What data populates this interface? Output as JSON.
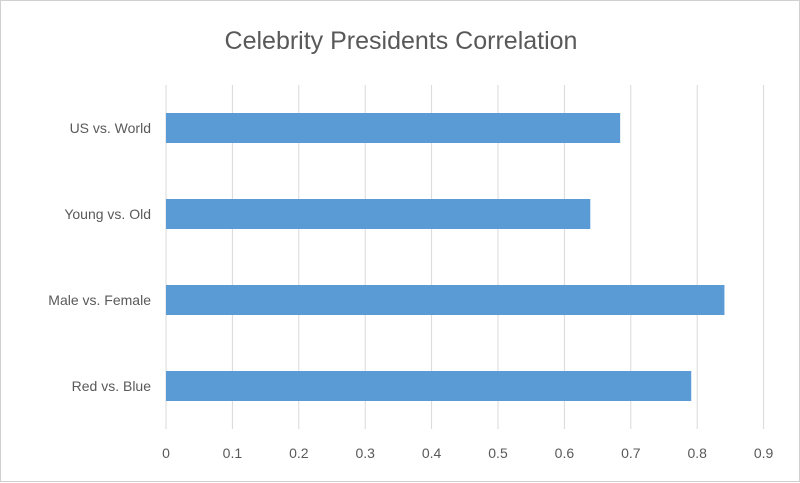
{
  "chart_data": {
    "type": "bar",
    "orientation": "horizontal",
    "title": "Celebrity Presidents Correlation",
    "categories": [
      "US vs. World",
      "Young vs. Old",
      "Male vs. Female",
      "Red vs. Blue"
    ],
    "values": [
      0.684,
      0.639,
      0.841,
      0.791
    ],
    "xlim": [
      0,
      0.9
    ],
    "xticks": [
      "0",
      "0.1",
      "0.2",
      "0.3",
      "0.4",
      "0.5",
      "0.6",
      "0.7",
      "0.8",
      "0.9"
    ],
    "grid": "vertical",
    "bar_color": "#5b9bd5",
    "legend": "none"
  }
}
